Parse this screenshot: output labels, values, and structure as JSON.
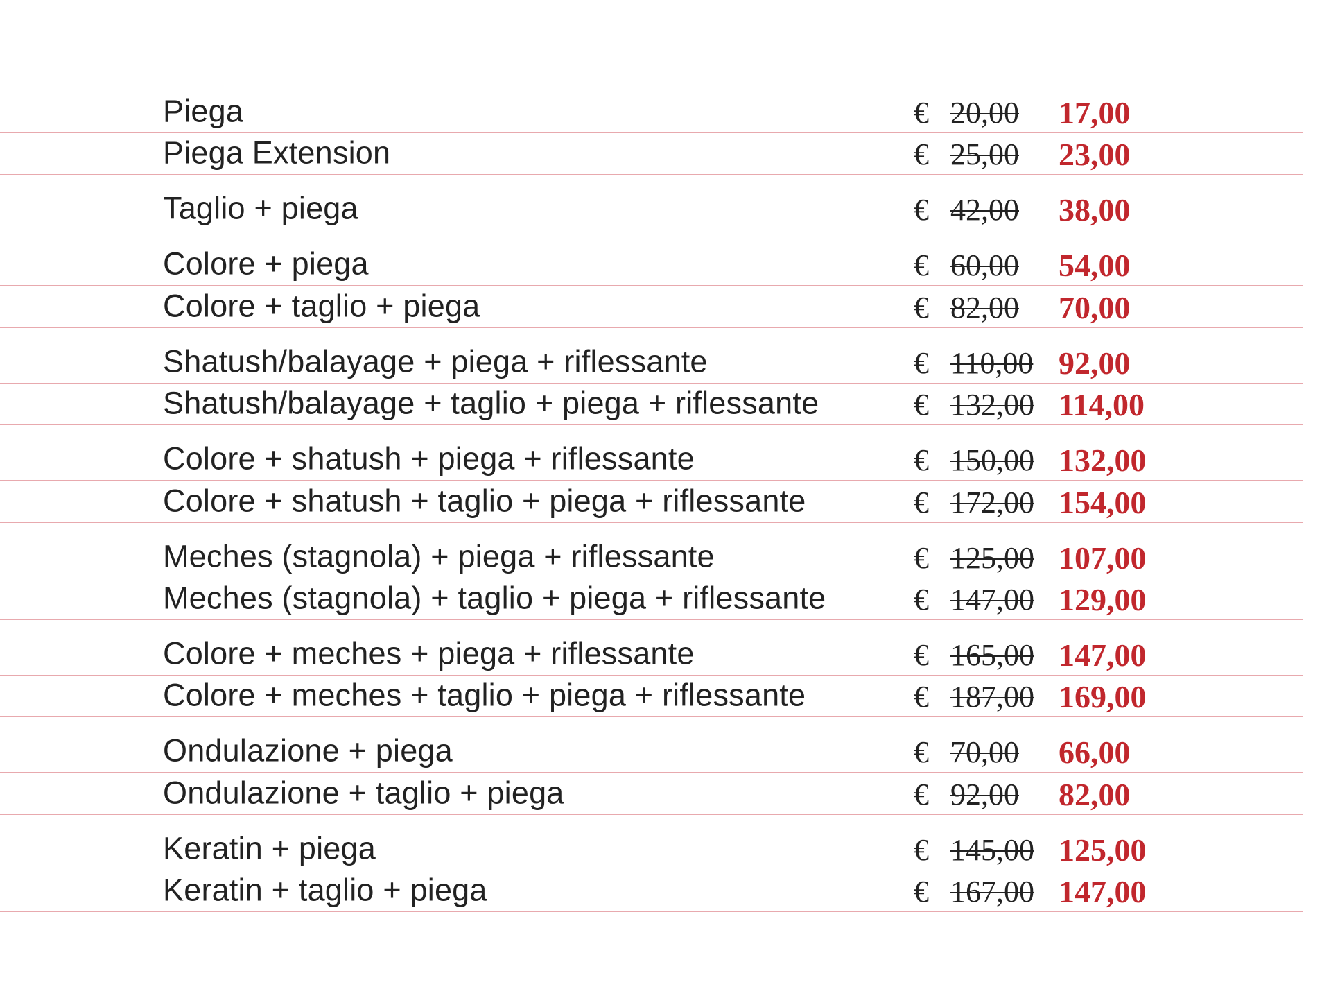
{
  "groups": [
    {
      "items": [
        {
          "service": "Piega",
          "currency": "€",
          "old_price": "20,00",
          "new_price": "17,00"
        },
        {
          "service": "Piega Extension",
          "currency": "€",
          "old_price": "25,00",
          "new_price": "23,00"
        }
      ]
    },
    {
      "items": [
        {
          "service": "Taglio + piega",
          "currency": "€",
          "old_price": "42,00",
          "new_price": "38,00"
        }
      ]
    },
    {
      "items": [
        {
          "service": "Colore + piega",
          "currency": "€",
          "old_price": "60,00",
          "new_price": "54,00"
        },
        {
          "service": "Colore + taglio + piega",
          "currency": "€",
          "old_price": "82,00",
          "new_price": "70,00"
        }
      ]
    },
    {
      "items": [
        {
          "service": "Shatush/balayage + piega + riflessante",
          "currency": "€",
          "old_price": "110,00",
          "new_price": "92,00"
        },
        {
          "service": "Shatush/balayage + taglio + piega + riflessante",
          "currency": "€",
          "old_price": "132,00",
          "new_price": "114,00"
        }
      ]
    },
    {
      "items": [
        {
          "service": "Colore + shatush + piega + riflessante",
          "currency": "€",
          "old_price": "150,00",
          "new_price": "132,00"
        },
        {
          "service": "Colore + shatush + taglio + piega + riflessante",
          "currency": "€",
          "old_price": "172,00",
          "new_price": "154,00"
        }
      ]
    },
    {
      "items": [
        {
          "service": "Meches (stagnola) + piega + riflessante",
          "currency": "€",
          "old_price": "125,00",
          "new_price": "107,00"
        },
        {
          "service": "Meches (stagnola) + taglio +  piega + riflessante",
          "currency": "€",
          "old_price": "147,00",
          "new_price": "129,00"
        }
      ]
    },
    {
      "items": [
        {
          "service": "Colore + meches + piega + riflessante",
          "currency": "€",
          "old_price": "165,00",
          "new_price": "147,00"
        },
        {
          "service": "Colore + meches + taglio + piega + riflessante",
          "currency": "€",
          "old_price": "187,00",
          "new_price": "169,00"
        }
      ]
    },
    {
      "items": [
        {
          "service": "Ondulazione + piega",
          "currency": "€",
          "old_price": "70,00",
          "new_price": "66,00"
        },
        {
          "service": "Ondulazione + taglio + piega",
          "currency": "€",
          "old_price": "92,00",
          "new_price": "82,00"
        }
      ]
    },
    {
      "items": [
        {
          "service": "Keratin + piega",
          "currency": "€",
          "old_price": "145,00",
          "new_price": "125,00"
        },
        {
          "service": "Keratin + taglio + piega",
          "currency": "€",
          "old_price": "167,00",
          "new_price": "147,00"
        }
      ]
    }
  ]
}
